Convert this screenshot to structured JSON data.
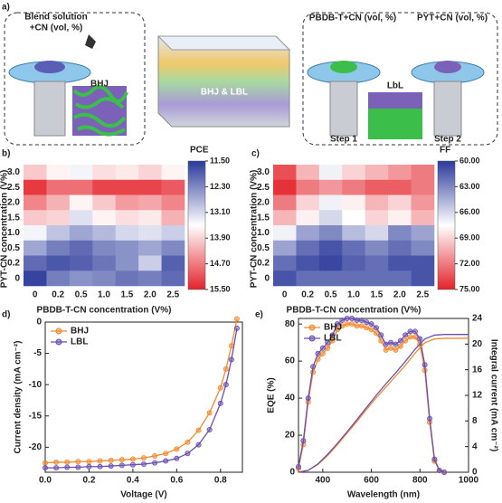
{
  "schematic": {
    "panel": "a)",
    "blend": [
      "Blend solution",
      "+CN (vol, %)"
    ],
    "bhj": "BHJ",
    "device": "BHJ & LBL",
    "donor": "PBDB-T+CN (vol, %)",
    "acceptor": "PYT+CN (vol, %)",
    "lbl": "LbL",
    "step1": "Step 1",
    "step2": "Step 2"
  },
  "chart_data": [
    {
      "type": "heatmap",
      "panel": "b)",
      "title": "PCE",
      "xlabel": "PBDB-T-CN concentration (V%)",
      "ylabel": "PYT-CN concentration (V%)",
      "x_categories": [
        "0",
        "0.2",
        "0.5",
        "1.0",
        "1.5",
        "2.0",
        "2.5"
      ],
      "y_categories": [
        "3.0",
        "2.5",
        "2.0",
        "1.5",
        "1.0",
        "0.5",
        "0.2",
        "0"
      ],
      "values": [
        [
          14.0,
          13.6,
          13.4,
          13.8,
          13.7,
          13.9,
          13.6
        ],
        [
          15.3,
          14.8,
          14.8,
          15.2,
          15.2,
          15.2,
          15.0
        ],
        [
          14.6,
          14.2,
          13.6,
          14.0,
          14.4,
          14.3,
          14.6
        ],
        [
          14.0,
          13.9,
          13.2,
          13.6,
          13.8,
          13.7,
          14.2
        ],
        [
          13.4,
          12.9,
          12.6,
          12.8,
          13.1,
          13.2,
          13.0
        ],
        [
          12.6,
          12.2,
          12.0,
          12.3,
          12.4,
          12.6,
          12.3
        ],
        [
          12.0,
          11.8,
          11.9,
          12.1,
          12.4,
          13.0,
          11.9
        ],
        [
          11.6,
          12.2,
          12.4,
          12.3,
          12.1,
          12.2,
          12.0
        ]
      ],
      "clim": [
        11.5,
        15.5
      ],
      "colors": [
        "#2b3a9a",
        "#ffffff",
        "#e3232b"
      ],
      "cticks": [
        {
          "value": 11.5,
          "label": "11.50"
        },
        {
          "value": 12.3,
          "label": "12.30"
        },
        {
          "value": 13.1,
          "label": "13.10"
        },
        {
          "value": 13.9,
          "label": "13.90"
        },
        {
          "value": 14.7,
          "label": "14.70"
        },
        {
          "value": 15.5,
          "label": "15.50"
        }
      ]
    },
    {
      "type": "heatmap",
      "panel": "c)",
      "title": "FF",
      "xlabel": "PBDB-T-CN concentration (V%)",
      "ylabel": "PYT-CN concentration (V%)",
      "x_categories": [
        "0",
        "0.2",
        "0.5",
        "1.0",
        "1.5",
        "2.0",
        "2.5"
      ],
      "y_categories": [
        "3.0",
        "2.5",
        "2.0",
        "1.5",
        "1.0",
        "0.5",
        "0.2",
        "0"
      ],
      "values": [
        [
          73.5,
          70,
          67,
          69,
          70,
          71,
          72
        ],
        [
          74.5,
          72,
          71,
          72,
          73,
          73,
          72
        ],
        [
          72,
          69,
          67,
          68,
          70,
          69,
          71
        ],
        [
          70,
          68,
          66,
          67.5,
          69,
          68,
          70
        ],
        [
          67,
          64,
          63,
          65,
          66,
          63,
          64
        ],
        [
          64,
          62,
          61,
          62,
          63,
          62,
          63
        ],
        [
          62,
          61,
          60.5,
          61.5,
          62,
          61,
          61
        ],
        [
          61,
          62,
          62,
          62,
          62,
          62,
          61
        ]
      ],
      "clim": [
        60,
        75
      ],
      "colors": [
        "#2b3a9a",
        "#ffffff",
        "#e3232b"
      ],
      "cticks": [
        {
          "value": 60,
          "label": "60.00"
        },
        {
          "value": 63,
          "label": "63.00"
        },
        {
          "value": 66,
          "label": "66.00"
        },
        {
          "value": 69,
          "label": "69.00"
        },
        {
          "value": 72,
          "label": "72.00"
        },
        {
          "value": 75,
          "label": "75.00"
        }
      ]
    },
    {
      "type": "line",
      "panel": "d)",
      "xlabel": "Voltage (V)",
      "ylabel": "Current density (mA cm⁻²)",
      "x": [
        0,
        0.05,
        0.1,
        0.15,
        0.2,
        0.25,
        0.3,
        0.35,
        0.4,
        0.45,
        0.5,
        0.55,
        0.6,
        0.65,
        0.7,
        0.75,
        0.8,
        0.825,
        0.85,
        0.875
      ],
      "series": [
        {
          "name": "BHJ",
          "color": "#f28a2e",
          "marker": "o",
          "values": [
            -22.5,
            -22.4,
            -22.4,
            -22.3,
            -22.3,
            -22.2,
            -22.1,
            -22.0,
            -21.9,
            -21.7,
            -21.4,
            -21.0,
            -20.3,
            -19.2,
            -17.3,
            -14.5,
            -10.5,
            -7.5,
            -3.8,
            0.5
          ]
        },
        {
          "name": "LBL",
          "color": "#6a4fb0",
          "marker": "o",
          "values": [
            -23.3,
            -23.3,
            -23.2,
            -23.2,
            -23.1,
            -23.1,
            -23.0,
            -22.9,
            -22.8,
            -22.7,
            -22.5,
            -22.2,
            -21.8,
            -21.0,
            -19.6,
            -17.2,
            -13.0,
            -10.0,
            -6.0,
            -1.0
          ]
        }
      ],
      "xlim": [
        0,
        0.9
      ],
      "xticks": [
        {
          "value": 0,
          "label": "0.0"
        },
        0.2,
        0.4,
        0.6,
        0.8
      ],
      "ylim": [
        -24,
        0
      ],
      "yticks": [
        0,
        -5,
        -10,
        -15,
        -20
      ],
      "legend": "upper left"
    },
    {
      "type": "line",
      "panel": "e)",
      "xlabel": "Wavelength (nm)",
      "ylabel": "EQE (%)",
      "y2label": "Integral current (mA cm⁻²)",
      "x": [
        300,
        320,
        340,
        360,
        380,
        400,
        420,
        440,
        460,
        480,
        500,
        520,
        540,
        560,
        580,
        600,
        620,
        640,
        660,
        680,
        700,
        720,
        740,
        760,
        780,
        800,
        820,
        840,
        860,
        880,
        900
      ],
      "series": [
        {
          "name": "BHJ",
          "color": "#f28a2e",
          "marker": "o",
          "values": [
            2,
            15,
            38,
            54,
            61,
            64,
            67,
            71,
            77,
            79,
            80,
            80,
            79,
            79,
            78,
            77,
            75,
            71,
            66,
            67,
            66,
            68,
            71,
            73,
            73,
            69,
            55,
            27,
            6,
            1,
            0
          ]
        },
        {
          "name": "LBL",
          "color": "#6a4fb0",
          "marker": "o",
          "values": [
            3,
            17,
            40,
            57,
            64,
            67,
            70,
            74,
            80,
            82,
            83,
            83,
            82,
            82,
            81,
            80,
            78,
            74,
            69,
            70,
            69,
            71,
            74,
            76,
            76,
            72,
            58,
            29,
            7,
            1,
            0
          ]
        },
        {
          "color": "#f28a2e",
          "axis": "y2",
          "x": [
            300,
            340,
            380,
            420,
            460,
            500,
            540,
            580,
            620,
            660,
            700,
            740,
            780,
            820,
            860,
            900,
            1000
          ],
          "values": [
            0,
            0.3,
            1.2,
            2.6,
            4.3,
            6.1,
            7.9,
            9.8,
            11.6,
            13.3,
            15.0,
            16.7,
            18.6,
            20.2,
            20.8,
            20.9,
            20.9
          ]
        },
        {
          "color": "#6a4fb0",
          "axis": "y2",
          "x": [
            300,
            340,
            380,
            420,
            460,
            500,
            540,
            580,
            620,
            660,
            700,
            740,
            780,
            820,
            860,
            900,
            1000
          ],
          "values": [
            0,
            0.3,
            1.3,
            2.8,
            4.5,
            6.3,
            8.2,
            10.1,
            12.0,
            13.8,
            15.5,
            17.3,
            19.2,
            20.8,
            21.4,
            21.5,
            21.5
          ]
        }
      ],
      "xlim": [
        300,
        1000
      ],
      "xticks": [
        400,
        600,
        800,
        1000
      ],
      "ylim": [
        0,
        83
      ],
      "yticks": [
        0,
        20,
        40,
        60,
        80
      ],
      "y2lim": [
        0,
        24
      ],
      "y2ticks": [
        0,
        4,
        8,
        12,
        16,
        20,
        24
      ],
      "legend": "upper left"
    }
  ]
}
